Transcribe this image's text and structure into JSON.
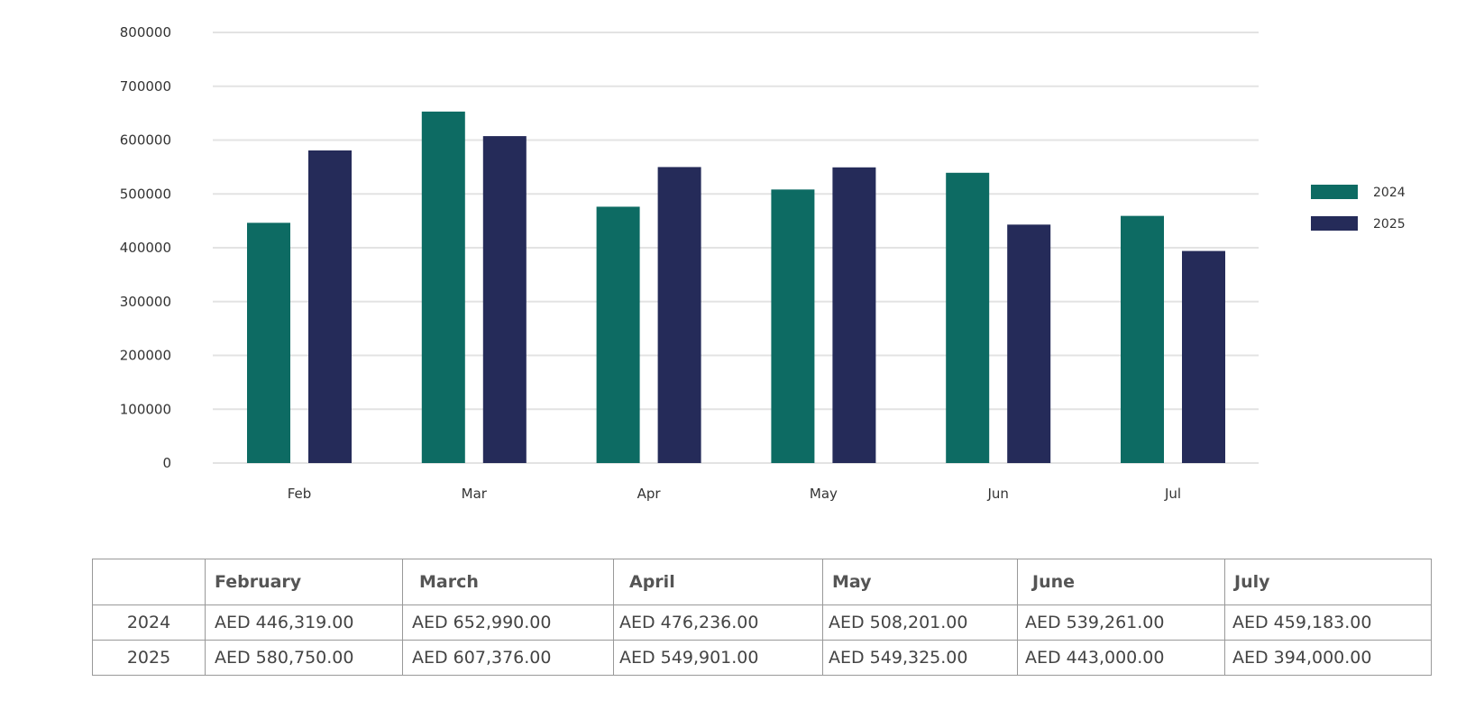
{
  "chart_data": {
    "type": "bar",
    "title": "",
    "xlabel": "",
    "ylabel": "",
    "ylim": [
      0,
      800000
    ],
    "yticks": [
      0,
      100000,
      200000,
      300000,
      400000,
      500000,
      600000,
      700000,
      800000
    ],
    "categories": [
      "Feb",
      "Mar",
      "Apr",
      "May",
      "Jun",
      "Jul"
    ],
    "series": [
      {
        "name": "2024",
        "color": "#0d6b63",
        "values": [
          446319,
          652990,
          476236,
          508201,
          539261,
          459183
        ]
      },
      {
        "name": "2025",
        "color": "#252b59",
        "values": [
          580750,
          607376,
          549901,
          549325,
          443000,
          394000
        ]
      }
    ],
    "grid": true,
    "legend": "right"
  },
  "table": {
    "headers": [
      "",
      "February",
      "March",
      "April",
      "May",
      "June",
      "July"
    ],
    "rows": [
      {
        "year": "2024",
        "cells": [
          "AED 446,319.00",
          "AED 652,990.00",
          "AED 476,236.00",
          "AED 508,201.00",
          "AED 539,261.00",
          "AED 459,183.00"
        ]
      },
      {
        "year": "2025",
        "cells": [
          "AED 580,750.00",
          "AED 607,376.00",
          "AED 549,901.00",
          "AED 549,325.00",
          "AED 443,000.00",
          "AED 394,000.00"
        ]
      }
    ]
  }
}
